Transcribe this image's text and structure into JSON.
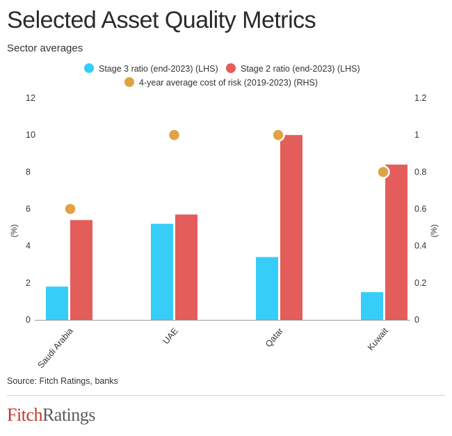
{
  "title": "Selected Asset Quality Metrics",
  "subtitle": "Sector averages",
  "source": "Source: Fitch Ratings, banks",
  "logo": {
    "part1": "Fitch",
    "part2": "Ratings"
  },
  "colors": {
    "stage3": "#36cdf8",
    "stage2": "#e35d5a",
    "cost": "#e0a244",
    "axis": "#9a9a9a"
  },
  "chart_data": {
    "type": "bar",
    "categories": [
      "Saudi Arabia",
      "UAE",
      "Qatar",
      "Kuwait"
    ],
    "series": [
      {
        "name": "Stage 3 ratio (end-2023) (LHS)",
        "axis": "left",
        "values": [
          1.8,
          5.2,
          3.4,
          1.5
        ]
      },
      {
        "name": "Stage 2 ratio (end-2023) (LHS)",
        "axis": "left",
        "values": [
          5.4,
          5.7,
          10.0,
          8.4
        ]
      },
      {
        "name": "4-year average cost of risk (2019-2023) (RHS)",
        "axis": "right",
        "type": "scatter",
        "values": [
          0.6,
          1.0,
          1.0,
          0.8
        ]
      }
    ],
    "ylabel_left": "(%)",
    "ylabel_right": "(%)",
    "ylim_left": [
      0,
      12
    ],
    "ylim_right": [
      0,
      1.2
    ],
    "yticks_left": [
      "0",
      "2",
      "4",
      "6",
      "8",
      "10",
      "12"
    ],
    "yticks_right": [
      "0",
      "0.2",
      "0.4",
      "0.6",
      "0.8",
      "1",
      "1.2"
    ],
    "grid": false,
    "legend_position": "top"
  }
}
